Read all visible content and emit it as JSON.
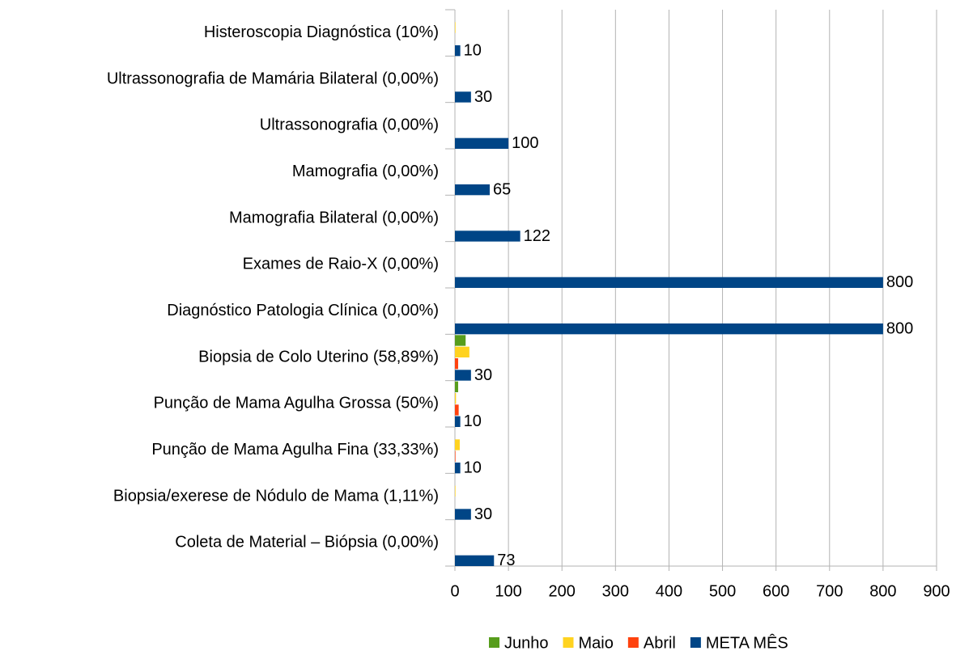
{
  "chart_data": {
    "type": "bar",
    "orientation": "horizontal",
    "categories": [
      "Histeroscopia Diagnóstica (10%)",
      "Ultrassonografia de Mamária Bilateral (0,00%)",
      "Ultrassonografia (0,00%)",
      "Mamografia (0,00%)",
      "Mamografia Bilateral (0,00%)",
      "Exames de Raio-X (0,00%)",
      "Diagnóstico Patologia Clínica (0,00%)",
      "Biopsia de Colo Uterino (58,89%)",
      "Punção de Mama Agulha Grossa (50%)",
      "Punção de Mama Agulha Fina (33,33%)",
      "Biopsia/exerese de Nódulo de Mama (1,11%)",
      "Coleta de Material – Biópsia (0,00%)"
    ],
    "series": [
      {
        "name": "Junho",
        "color": "#579d1c",
        "values": [
          0,
          0,
          0,
          0,
          0,
          0,
          0,
          20,
          6,
          0,
          0,
          0
        ]
      },
      {
        "name": "Maio",
        "color": "#ffd320",
        "values": [
          1,
          0,
          0,
          0,
          0,
          0,
          0,
          27,
          2,
          9,
          1,
          0
        ]
      },
      {
        "name": "Abril",
        "color": "#ff420e",
        "values": [
          0,
          0,
          0,
          0,
          0,
          0,
          0,
          6,
          7,
          1,
          0,
          0
        ]
      },
      {
        "name": "META MÊS",
        "color": "#004586",
        "values": [
          10,
          30,
          100,
          65,
          122,
          800,
          800,
          30,
          10,
          10,
          30,
          73
        ],
        "data_labels": true
      }
    ],
    "xlim": [
      0,
      900
    ],
    "xticks": [
      0,
      100,
      200,
      300,
      400,
      500,
      600,
      700,
      800,
      900
    ],
    "grid": true,
    "legend": "bottom"
  }
}
